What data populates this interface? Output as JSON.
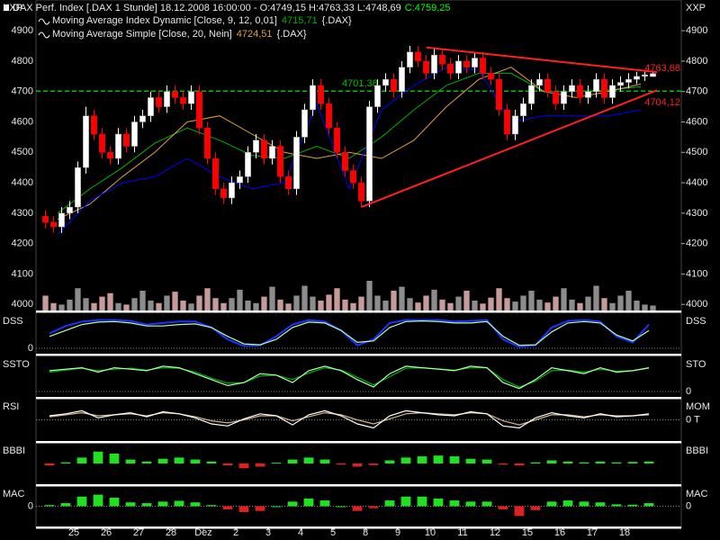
{
  "chart_data": [
    {
      "type": "candlestick",
      "axis_unit": "XXP",
      "title": "DAX Perf. Index [.DAX  1 Stunde] 18.12.2008 16:00:00 - O:4749,15 H:4763,33 L:4748,69",
      "title_close": "C:4759,25",
      "title_close_color": "#00ff00",
      "categories": [
        null,
        null,
        null,
        null,
        "25",
        null,
        null,
        null,
        "26",
        null,
        null,
        null,
        "27",
        null,
        null,
        null,
        "28",
        null,
        null,
        null,
        "Dez",
        null,
        null,
        null,
        "2",
        null,
        null,
        null,
        "3",
        null,
        null,
        null,
        "4",
        null,
        null,
        null,
        "5",
        null,
        null,
        null,
        "8",
        null,
        null,
        null,
        "9",
        null,
        null,
        null,
        "10",
        null,
        null,
        null,
        "11",
        null,
        null,
        null,
        "12",
        null,
        null,
        null,
        "15",
        null,
        null,
        null,
        "16",
        null,
        null,
        null,
        "17",
        null,
        null,
        null,
        "18",
        null,
        null,
        null
      ],
      "open": [
        4290,
        4270,
        4255,
        4300,
        4320,
        4450,
        4620,
        4560,
        4500,
        4480,
        4560,
        4520,
        4600,
        4620,
        4680,
        4650,
        4700,
        4680,
        4660,
        4700,
        4580,
        4480,
        4380,
        4350,
        4400,
        4420,
        4500,
        4540,
        4480,
        4520,
        4420,
        4380,
        4550,
        4640,
        4720,
        4660,
        4580,
        4500,
        4440,
        4400,
        4340,
        4650,
        4720,
        4740,
        4700,
        4780,
        4830,
        4800,
        4760,
        4820,
        4790,
        4760,
        4800,
        4780,
        4810,
        4760,
        4740,
        4640,
        4560,
        4620,
        4660,
        4720,
        4740,
        4700,
        4660,
        4700,
        4720,
        4680,
        4700,
        4740,
        4680,
        4720,
        4730,
        4740,
        4750,
        4749.15
      ],
      "high": [
        4310,
        4290,
        4320,
        4340,
        4470,
        4650,
        4640,
        4580,
        4520,
        4580,
        4580,
        4620,
        4640,
        4700,
        4700,
        4720,
        4720,
        4700,
        4720,
        4720,
        4600,
        4500,
        4400,
        4420,
        4440,
        4520,
        4560,
        4560,
        4540,
        4540,
        4440,
        4570,
        4660,
        4740,
        4740,
        4680,
        4600,
        4520,
        4460,
        4420,
        4670,
        4740,
        4760,
        4760,
        4800,
        4850,
        4850,
        4820,
        4840,
        4840,
        4810,
        4820,
        4820,
        4830,
        4830,
        4780,
        4760,
        4660,
        4640,
        4680,
        4740,
        4760,
        4760,
        4720,
        4720,
        4740,
        4740,
        4720,
        4760,
        4760,
        4740,
        4750,
        4760,
        4765,
        4765,
        4763.33
      ],
      "low": [
        4250,
        4235,
        4235,
        4280,
        4300,
        4430,
        4540,
        4480,
        4460,
        4460,
        4500,
        4500,
        4580,
        4600,
        4630,
        4630,
        4660,
        4640,
        4640,
        4560,
        4460,
        4360,
        4330,
        4330,
        4380,
        4400,
        4480,
        4460,
        4460,
        4400,
        4360,
        4360,
        4530,
        4620,
        4640,
        4560,
        4480,
        4420,
        4380,
        4320,
        4320,
        4630,
        4700,
        4680,
        4680,
        4760,
        4780,
        4740,
        4740,
        4770,
        4740,
        4740,
        4760,
        4760,
        4740,
        4720,
        4620,
        4540,
        4540,
        4600,
        4640,
        4700,
        4680,
        4640,
        4640,
        4680,
        4660,
        4660,
        4680,
        4660,
        4660,
        4700,
        4710,
        4725,
        4735,
        4748.69
      ],
      "close": [
        4270,
        4255,
        4300,
        4320,
        4450,
        4620,
        4560,
        4500,
        4480,
        4560,
        4520,
        4600,
        4620,
        4680,
        4650,
        4700,
        4680,
        4660,
        4700,
        4580,
        4480,
        4380,
        4350,
        4400,
        4420,
        4500,
        4540,
        4480,
        4520,
        4420,
        4380,
        4550,
        4640,
        4720,
        4660,
        4580,
        4500,
        4440,
        4400,
        4340,
        4650,
        4720,
        4740,
        4700,
        4780,
        4830,
        4800,
        4760,
        4820,
        4790,
        4760,
        4800,
        4780,
        4810,
        4760,
        4740,
        4640,
        4560,
        4620,
        4660,
        4720,
        4740,
        4700,
        4660,
        4700,
        4720,
        4680,
        4700,
        4740,
        4680,
        4720,
        4730,
        4740,
        4750,
        4755,
        4759.25
      ],
      "up_color": "#ffffff",
      "down_color": "#ff0000",
      "volume": {
        "ylim": [
          0,
          100
        ],
        "up_color": "#8c8c8c",
        "down_color": "#c89a9a",
        "values": [
          30,
          15,
          12,
          22,
          45,
          25,
          15,
          28,
          35,
          15,
          12,
          25,
          40,
          20,
          15,
          30,
          38,
          20,
          14,
          30,
          45,
          25,
          15,
          25,
          42,
          20,
          15,
          28,
          48,
          22,
          14,
          30,
          50,
          28,
          20,
          32,
          45,
          22,
          15,
          28,
          60,
          30,
          20,
          40,
          48,
          25,
          16,
          30,
          42,
          22,
          15,
          28,
          40,
          20,
          14,
          26,
          45,
          25,
          18,
          30,
          40,
          22,
          16,
          28,
          45,
          22,
          15,
          28,
          50,
          25,
          15,
          30,
          40,
          20,
          12,
          10
        ]
      },
      "overlays": [
        {
          "name": "Moving Average Index Dynamic [Close, 9, 12, 0,01]",
          "last_label": "4715,71",
          "instrument": "{.DAX}",
          "color": "#00b000",
          "values": [
            4300,
            4380,
            4450,
            4530,
            4580,
            4540,
            4490,
            4480,
            4520,
            4480,
            4550,
            4640,
            4720,
            4760,
            4760,
            4700,
            4700,
            4705,
            4715.71
          ]
        },
        {
          "name": "Moving Average Simple [Close, 20, Nein]",
          "last_label": "4724,51",
          "instrument": "{.DAX}",
          "color": "#e0a040",
          "values": [
            4280,
            4330,
            4420,
            4500,
            4600,
            4620,
            4560,
            4500,
            4480,
            4500,
            4480,
            4540,
            4650,
            4740,
            4780,
            4700,
            4680,
            4700,
            4724.51
          ]
        },
        {
          "color": "#0000ff",
          "values": [
            4230,
            4340,
            4400,
            4420,
            4480,
            4420,
            4380,
            4400,
            4660,
            4380,
            4640,
            4720,
            4780,
            4770,
            4600,
            4620,
            4620,
            4620,
            4640
          ]
        }
      ],
      "hline": {
        "value": 4701.38,
        "label": "4701,38",
        "color": "#00c000"
      },
      "trendlines": [
        {
          "x": [
            47,
            75.5
          ],
          "y": [
            4845,
            4763.68
          ],
          "label": "4763,68",
          "color": "#ff2020"
        },
        {
          "x": [
            39,
            75.5
          ],
          "y": [
            4320,
            4704.12
          ],
          "label": "4704,12",
          "color": "#ff2020"
        }
      ],
      "ylim": [
        3980,
        4995
      ],
      "yticks": [
        4000,
        4100,
        4200,
        4300,
        4400,
        4500,
        4600,
        4700,
        4800,
        4900
      ]
    },
    {
      "type": "line",
      "label_left": "DSS",
      "label_right": "DSS",
      "tick_side": "left",
      "ylim": [
        -15,
        115
      ],
      "yticks": [
        0
      ],
      "series": [
        {
          "color": "#2030ff",
          "values": [
            50,
            75,
            90,
            95,
            95,
            92,
            80,
            85,
            90,
            90,
            70,
            30,
            8,
            10,
            40,
            80,
            95,
            90,
            60,
            10,
            30,
            85,
            95,
            95,
            95,
            90,
            92,
            95,
            30,
            5,
            10,
            70,
            92,
            95,
            90,
            40,
            20,
            80
          ]
        },
        {
          "color": "#b0ffb0",
          "values": [
            40,
            60,
            80,
            88,
            90,
            85,
            75,
            75,
            80,
            82,
            70,
            40,
            15,
            12,
            30,
            70,
            88,
            85,
            60,
            20,
            25,
            70,
            90,
            92,
            90,
            85,
            85,
            90,
            40,
            10,
            12,
            55,
            85,
            90,
            85,
            45,
            25,
            60
          ]
        }
      ]
    },
    {
      "type": "line",
      "label_left": "SSTO",
      "label_right": "STO",
      "tick_side": "right",
      "ylim": [
        -15,
        115
      ],
      "yticks": [
        0
      ],
      "series": [
        {
          "color": "#00b000",
          "values": [
            65,
            72,
            78,
            70,
            75,
            78,
            72,
            80,
            78,
            65,
            45,
            28,
            30,
            52,
            55,
            40,
            62,
            80,
            72,
            48,
            22,
            50,
            78,
            80,
            76,
            72,
            80,
            80,
            40,
            15,
            35,
            70,
            72,
            65,
            75,
            68,
            70,
            78
          ]
        },
        {
          "color": "#b0ffb0",
          "values": [
            70,
            75,
            80,
            65,
            80,
            75,
            70,
            85,
            80,
            60,
            40,
            20,
            30,
            60,
            55,
            30,
            70,
            85,
            70,
            40,
            15,
            60,
            85,
            80,
            75,
            70,
            85,
            80,
            30,
            10,
            40,
            80,
            70,
            60,
            80,
            65,
            70,
            80
          ]
        }
      ]
    },
    {
      "type": "line",
      "label_left": "RSI",
      "label_right": "MOM",
      "tick_side": "right",
      "ylim": [
        -100,
        100
      ],
      "yticks": [
        {
          "value": 0,
          "label": "0 T"
        }
      ],
      "series": [
        {
          "color": "#d2b48c",
          "values": [
            15,
            25,
            35,
            20,
            25,
            30,
            20,
            35,
            30,
            15,
            -5,
            -15,
            0,
            20,
            20,
            -5,
            15,
            35,
            25,
            0,
            -20,
            5,
            30,
            35,
            30,
            25,
            35,
            30,
            -5,
            -25,
            0,
            25,
            25,
            15,
            25,
            20,
            20,
            25
          ]
        },
        {
          "color": "#ffffff",
          "values": [
            20,
            30,
            45,
            10,
            25,
            35,
            15,
            40,
            30,
            10,
            -20,
            -30,
            5,
            30,
            20,
            -25,
            25,
            45,
            20,
            -20,
            -40,
            20,
            45,
            35,
            25,
            20,
            40,
            30,
            -30,
            -40,
            10,
            35,
            20,
            10,
            30,
            15,
            20,
            30
          ]
        }
      ]
    },
    {
      "type": "bar",
      "label_left": "BBBI",
      "label_right": "BBBI",
      "tick_side": "none",
      "ylim": [
        -50,
        50
      ],
      "yticks": [],
      "pos_color": "#20e020",
      "neg_color": "#e02020",
      "values": [
        -5,
        3,
        15,
        30,
        25,
        10,
        5,
        12,
        15,
        10,
        5,
        -5,
        -12,
        -8,
        2,
        10,
        15,
        10,
        -3,
        -8,
        -4,
        8,
        15,
        18,
        20,
        18,
        12,
        10,
        -3,
        -5,
        3,
        8,
        5,
        3,
        5,
        3,
        4,
        5
      ]
    },
    {
      "type": "bar",
      "label_left": "MAC",
      "label_right": "MAC",
      "tick_side": "both",
      "ylim": [
        -50,
        50
      ],
      "yticks": [
        0
      ],
      "pos_color": "#20e020",
      "neg_color": "#e02020",
      "values": [
        3,
        8,
        25,
        30,
        22,
        10,
        8,
        12,
        14,
        10,
        3,
        -8,
        -15,
        -12,
        0,
        12,
        20,
        15,
        0,
        -12,
        -5,
        15,
        25,
        25,
        20,
        15,
        12,
        12,
        -8,
        -25,
        -10,
        12,
        15,
        12,
        10,
        5,
        4,
        8
      ]
    }
  ]
}
